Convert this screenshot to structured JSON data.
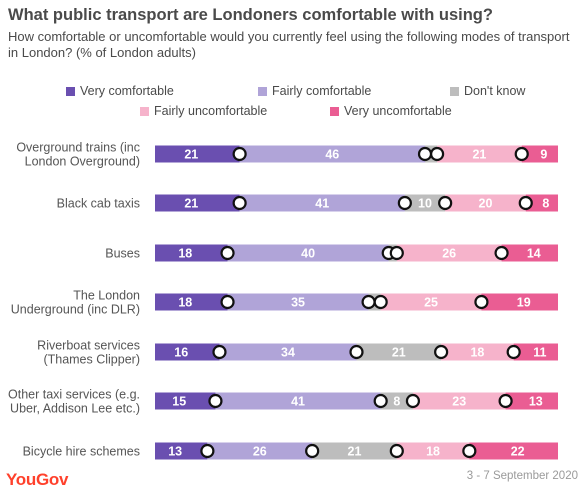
{
  "title": "What public transport are Londoners comfortable with using?",
  "subtitle": "How comfortable or uncomfortable would you currently feel using the following modes of transport in London? (% of London adults)",
  "footer": {
    "logo": "YouGov",
    "date": "3 - 7 September 2020"
  },
  "legend": [
    {
      "label": "Very comfortable",
      "color": "#6a4fb0"
    },
    {
      "label": "Fairly comfortable",
      "color": "#b0a4d8"
    },
    {
      "label": "Don't know",
      "color": "#bdbdbd"
    },
    {
      "label": "Fairly uncomfortable",
      "color": "#f6b3cb"
    },
    {
      "label": "Very uncomfortable",
      "color": "#ea5d93"
    }
  ],
  "chart_data": {
    "type": "bar",
    "stacked": true,
    "orientation": "horizontal",
    "categories": [
      [
        "Overground trains (inc",
        "London Overground)"
      ],
      [
        "Black cab taxis"
      ],
      [
        "Buses"
      ],
      [
        "The London",
        "Underground (inc DLR)"
      ],
      [
        "Riverboat services",
        "(Thames Clipper)"
      ],
      [
        "Other taxi services (e.g.",
        "Uber, Addison Lee etc.)"
      ],
      [
        "Bicycle hire schemes"
      ]
    ],
    "series": [
      {
        "name": "Very comfortable",
        "color": "#6a4fb0",
        "values": [
          21,
          21,
          18,
          18,
          16,
          15,
          13
        ]
      },
      {
        "name": "Fairly comfortable",
        "color": "#b0a4d8",
        "values": [
          46,
          41,
          40,
          35,
          34,
          41,
          26
        ]
      },
      {
        "name": "Don't know",
        "color": "#bdbdbd",
        "values": [
          3,
          10,
          2,
          3,
          21,
          8,
          21
        ]
      },
      {
        "name": "Fairly uncomfortable",
        "color": "#f6b3cb",
        "values": [
          21,
          20,
          26,
          25,
          18,
          23,
          18
        ]
      },
      {
        "name": "Very uncomfortable",
        "color": "#ea5d93",
        "values": [
          9,
          8,
          14,
          19,
          11,
          13,
          22
        ]
      }
    ],
    "xlim": [
      0,
      100
    ]
  }
}
